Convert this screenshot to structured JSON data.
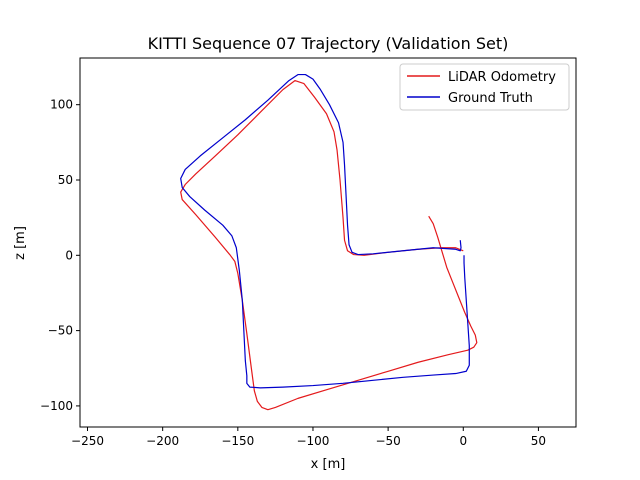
{
  "chart_data": {
    "type": "line",
    "title": "KITTI Sequence 07 Trajectory (Validation Set)",
    "xlabel": "x [m]",
    "ylabel": "z [m]",
    "xlim": [
      -255,
      75
    ],
    "ylim": [
      -114,
      131
    ],
    "xticks": [
      -250,
      -200,
      -150,
      -100,
      -50,
      0,
      50
    ],
    "yticks": [
      -100,
      -50,
      0,
      50,
      100
    ],
    "grid": false,
    "legend": {
      "position": "top-right",
      "entries": [
        "LiDAR Odometry",
        "Ground Truth"
      ]
    },
    "series": [
      {
        "name": "LiDAR Odometry",
        "color": "#e41a1c",
        "points": [
          [
            -23,
            26
          ],
          [
            -20,
            21
          ],
          [
            -17,
            12
          ],
          [
            -14,
            2
          ],
          [
            -11,
            -8
          ],
          [
            -7,
            -18
          ],
          [
            -3,
            -28
          ],
          [
            1,
            -38
          ],
          [
            5,
            -47
          ],
          [
            8,
            -53
          ],
          [
            9,
            -58
          ],
          [
            7,
            -61
          ],
          [
            3,
            -63
          ],
          [
            -10,
            -66
          ],
          [
            -30,
            -71
          ],
          [
            -50,
            -77
          ],
          [
            -70,
            -83
          ],
          [
            -90,
            -89
          ],
          [
            -110,
            -95
          ],
          [
            -125,
            -101
          ],
          [
            -130,
            -102.5
          ],
          [
            -134,
            -101
          ],
          [
            -137,
            -97
          ],
          [
            -139,
            -90
          ],
          [
            -141,
            -75
          ],
          [
            -144,
            -52
          ],
          [
            -147,
            -30
          ],
          [
            -150,
            -12
          ],
          [
            -152,
            -4
          ],
          [
            -155,
            0
          ],
          [
            -165,
            12
          ],
          [
            -178,
            27
          ],
          [
            -187,
            37
          ],
          [
            -188,
            42
          ],
          [
            -185,
            47
          ],
          [
            -178,
            54
          ],
          [
            -165,
            66
          ],
          [
            -150,
            80
          ],
          [
            -135,
            95
          ],
          [
            -120,
            110
          ],
          [
            -112,
            116
          ],
          [
            -106,
            114
          ],
          [
            -99,
            105
          ],
          [
            -91,
            94
          ],
          [
            -86,
            82
          ],
          [
            -84,
            70
          ],
          [
            -82,
            50
          ],
          [
            -80,
            25
          ],
          [
            -79,
            10
          ],
          [
            -77,
            3
          ],
          [
            -73,
            0.5
          ],
          [
            -66,
            0
          ],
          [
            -50,
            2
          ],
          [
            -30,
            4
          ],
          [
            -15,
            5
          ],
          [
            -5,
            5
          ],
          [
            0,
            3
          ]
        ]
      },
      {
        "name": "Ground Truth",
        "color": "#0000cc",
        "points": [
          [
            -2,
            10
          ],
          [
            -1.5,
            5
          ],
          [
            -2,
            3
          ],
          [
            -5,
            4
          ],
          [
            -20,
            5
          ],
          [
            -40,
            3
          ],
          [
            -60,
            1
          ],
          [
            -70,
            0.5
          ],
          [
            -74,
            2
          ],
          [
            -76,
            7
          ],
          [
            -77,
            20
          ],
          [
            -78,
            40
          ],
          [
            -79,
            60
          ],
          [
            -80,
            75
          ],
          [
            -83,
            88
          ],
          [
            -89,
            100
          ],
          [
            -95,
            110
          ],
          [
            -100,
            117
          ],
          [
            -105,
            120
          ],
          [
            -110,
            120
          ],
          [
            -116,
            116
          ],
          [
            -130,
            103
          ],
          [
            -145,
            90
          ],
          [
            -160,
            78
          ],
          [
            -175,
            66
          ],
          [
            -185,
            57
          ],
          [
            -188,
            51
          ],
          [
            -187,
            45
          ],
          [
            -182,
            39
          ],
          [
            -172,
            30
          ],
          [
            -160,
            20
          ],
          [
            -154,
            13
          ],
          [
            -151,
            5
          ],
          [
            -149,
            -10
          ],
          [
            -147,
            -30
          ],
          [
            -146,
            -50
          ],
          [
            -145,
            -70
          ],
          [
            -144,
            -80
          ],
          [
            -144,
            -85
          ],
          [
            -142,
            -87.5
          ],
          [
            -135,
            -88
          ],
          [
            -120,
            -87.5
          ],
          [
            -100,
            -86.5
          ],
          [
            -80,
            -85
          ],
          [
            -60,
            -83
          ],
          [
            -40,
            -81
          ],
          [
            -20,
            -79.5
          ],
          [
            -5,
            -78.5
          ],
          [
            2,
            -77
          ],
          [
            4,
            -73
          ],
          [
            4,
            -60
          ],
          [
            3,
            -45
          ],
          [
            2,
            -30
          ],
          [
            1,
            -15
          ],
          [
            0.5,
            -5
          ],
          [
            0.5,
            0
          ]
        ]
      }
    ]
  }
}
